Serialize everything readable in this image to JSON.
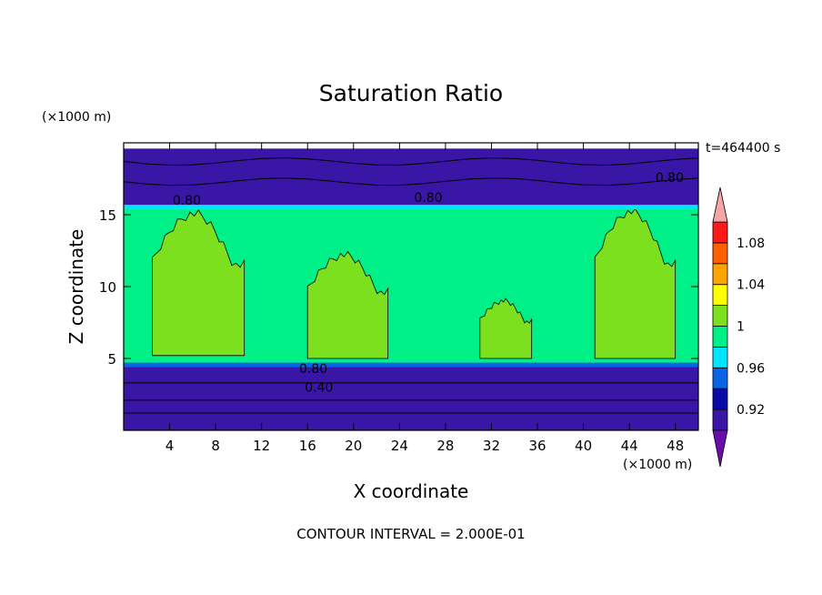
{
  "chart_data": {
    "type": "heatmap",
    "title": "Saturation Ratio",
    "xlabel": "X coordinate",
    "ylabel": "Z coordinate",
    "x_units": "(×1000 m)",
    "y_units": "(×1000 m)",
    "time_label": "t=464400 s",
    "footer": "CONTOUR INTERVAL = 2.000E-01",
    "xlim": [
      0,
      50
    ],
    "ylim": [
      0,
      20
    ],
    "x_ticks": [
      4,
      8,
      12,
      16,
      20,
      24,
      28,
      32,
      36,
      40,
      44,
      48
    ],
    "y_ticks": [
      5,
      10,
      15
    ],
    "x_tick_labels": [
      "4",
      "8",
      "12",
      "16",
      "20",
      "24",
      "28",
      "32",
      "36",
      "40",
      "44",
      "48"
    ],
    "y_tick_labels": [
      "5",
      "10",
      "15"
    ],
    "contour_labels": [
      {
        "text": "0.80",
        "x": 5.5,
        "z": 16.0
      },
      {
        "text": "0.80",
        "x": 26.5,
        "z": 16.2
      },
      {
        "text": "0.80",
        "x": 47.5,
        "z": 17.6
      },
      {
        "text": "0.80",
        "x": 16.5,
        "z": 4.3
      },
      {
        "text": "0.40",
        "x": 17.0,
        "z": 3.0
      }
    ],
    "colorbar": {
      "levels": [
        0.9,
        0.92,
        0.94,
        0.96,
        0.98,
        1.0,
        1.02,
        1.04,
        1.06,
        1.08,
        1.1
      ],
      "colors": [
        "#6a0dad",
        "#3a16a6",
        "#0a0aa8",
        "#0a64e6",
        "#00e6ff",
        "#00f088",
        "#7de01e",
        "#ffff00",
        "#ffa500",
        "#ff6000",
        "#ff1a1a",
        "#f4a6a6"
      ],
      "tick_labels": [
        {
          "value": 0.92,
          "label": "0.92"
        },
        {
          "value": 0.96,
          "label": "0.96"
        },
        {
          "value": 1.0,
          "label": "1"
        },
        {
          "value": 1.04,
          "label": "1.04"
        },
        {
          "value": 1.08,
          "label": "1.08"
        }
      ]
    },
    "regions": [
      {
        "name": "upper-dry-layer",
        "value": 0.9,
        "x": [
          0,
          50
        ],
        "z": [
          15.5,
          19.6
        ]
      },
      {
        "name": "mid-saturated-layer",
        "value": 0.99,
        "x": [
          0,
          50
        ],
        "z": [
          4.6,
          15.5
        ]
      },
      {
        "name": "boundary-thin-layer",
        "value": 0.95,
        "x": [
          0,
          50
        ],
        "z": [
          4.4,
          4.7
        ]
      },
      {
        "name": "lower-dry-layer",
        "value": 0.9,
        "x": [
          0,
          50
        ],
        "z": [
          0,
          4.4
        ]
      },
      {
        "name": "supersat-column-1",
        "value": 1.01,
        "x": [
          2.5,
          10.5
        ],
        "z": [
          5.2,
          15.4
        ]
      },
      {
        "name": "supersat-column-2",
        "value": 1.01,
        "x": [
          16,
          23
        ],
        "z": [
          5.0,
          12.5
        ]
      },
      {
        "name": "supersat-column-3",
        "value": 1.01,
        "x": [
          31,
          35.5
        ],
        "z": [
          5.0,
          9.2
        ]
      },
      {
        "name": "supersat-column-4",
        "value": 1.01,
        "x": [
          41,
          48
        ],
        "z": [
          5.0,
          15.5
        ]
      }
    ]
  }
}
